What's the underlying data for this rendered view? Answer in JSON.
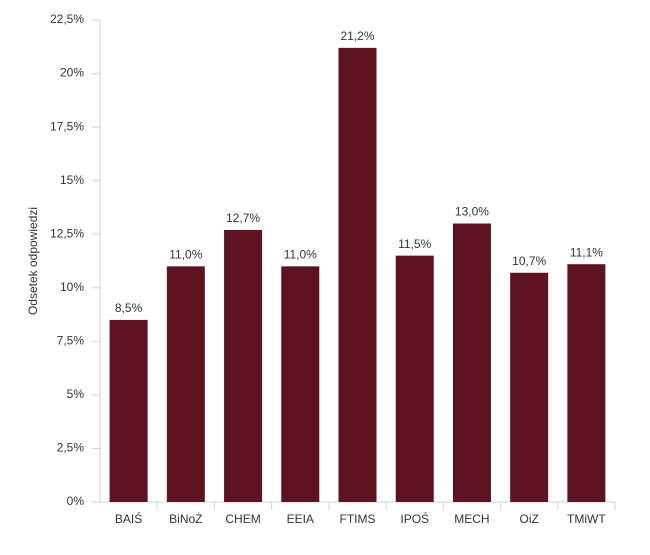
{
  "chart_data": {
    "type": "bar",
    "y_label": "Odsetek odpowiedzi",
    "categories": [
      "BAIŚ",
      "BiNoŻ",
      "CHEM",
      "EEIA",
      "FTIMS",
      "IPOŚ",
      "MECH",
      "OiZ",
      "TMiWT"
    ],
    "values": [
      8.5,
      11.0,
      12.7,
      11.0,
      21.2,
      11.5,
      13.0,
      10.7,
      11.1
    ],
    "value_labels": [
      "8,5%",
      "11,0%",
      "12,7%",
      "11,0%",
      "21,2%",
      "11,5%",
      "13,0%",
      "10,7%",
      "11,1%"
    ],
    "color": "#5e1420",
    "ylim": [
      0,
      22.5
    ],
    "yticks": [
      {
        "value": 0,
        "label": "0%"
      },
      {
        "value": 2.5,
        "label": "2,5%"
      },
      {
        "value": 5,
        "label": "5%"
      },
      {
        "value": 7.5,
        "label": "7,5%"
      },
      {
        "value": 10,
        "label": "10%"
      },
      {
        "value": 12.5,
        "label": "12,5%"
      },
      {
        "value": 15,
        "label": "15%"
      },
      {
        "value": 17.5,
        "label": "17,5%"
      },
      {
        "value": 20,
        "label": "20%"
      },
      {
        "value": 22.5,
        "label": "22,5%"
      }
    ],
    "grid": false
  }
}
